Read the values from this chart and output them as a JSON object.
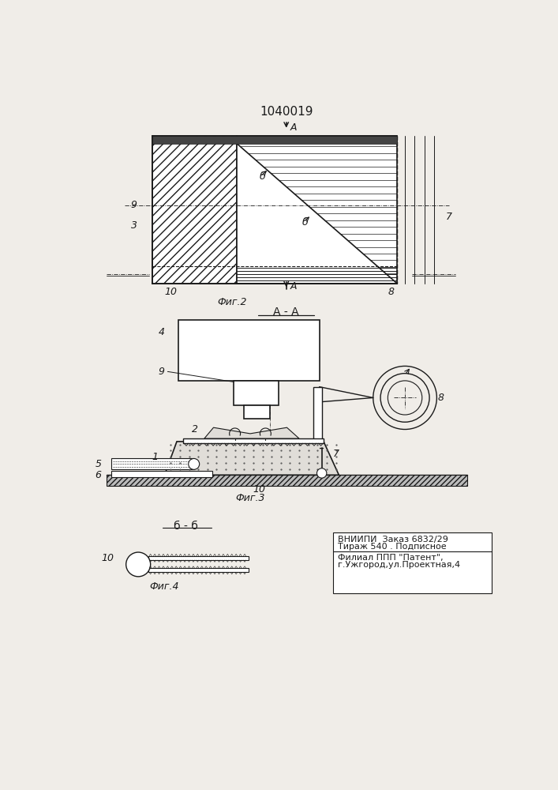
{
  "bg_color": "#f0ede8",
  "line_color": "#1a1a1a",
  "title_text": "1040019",
  "fig2_label": "Фиг.2",
  "fig3_label": "Фиг.3",
  "fig4_label": "Фиг.4",
  "aa_label": "A - A",
  "bb_label": "б - б",
  "vniiipi_line1": "ВНИИПИ  Заказ 6832/29",
  "vniiipi_line2": "Тираж 540 . Подписное",
  "vniiipi_line3": "Филиал ППП \"Патент\",",
  "vniiipi_line4": "г.Ужгород,ул.Проектная,4"
}
